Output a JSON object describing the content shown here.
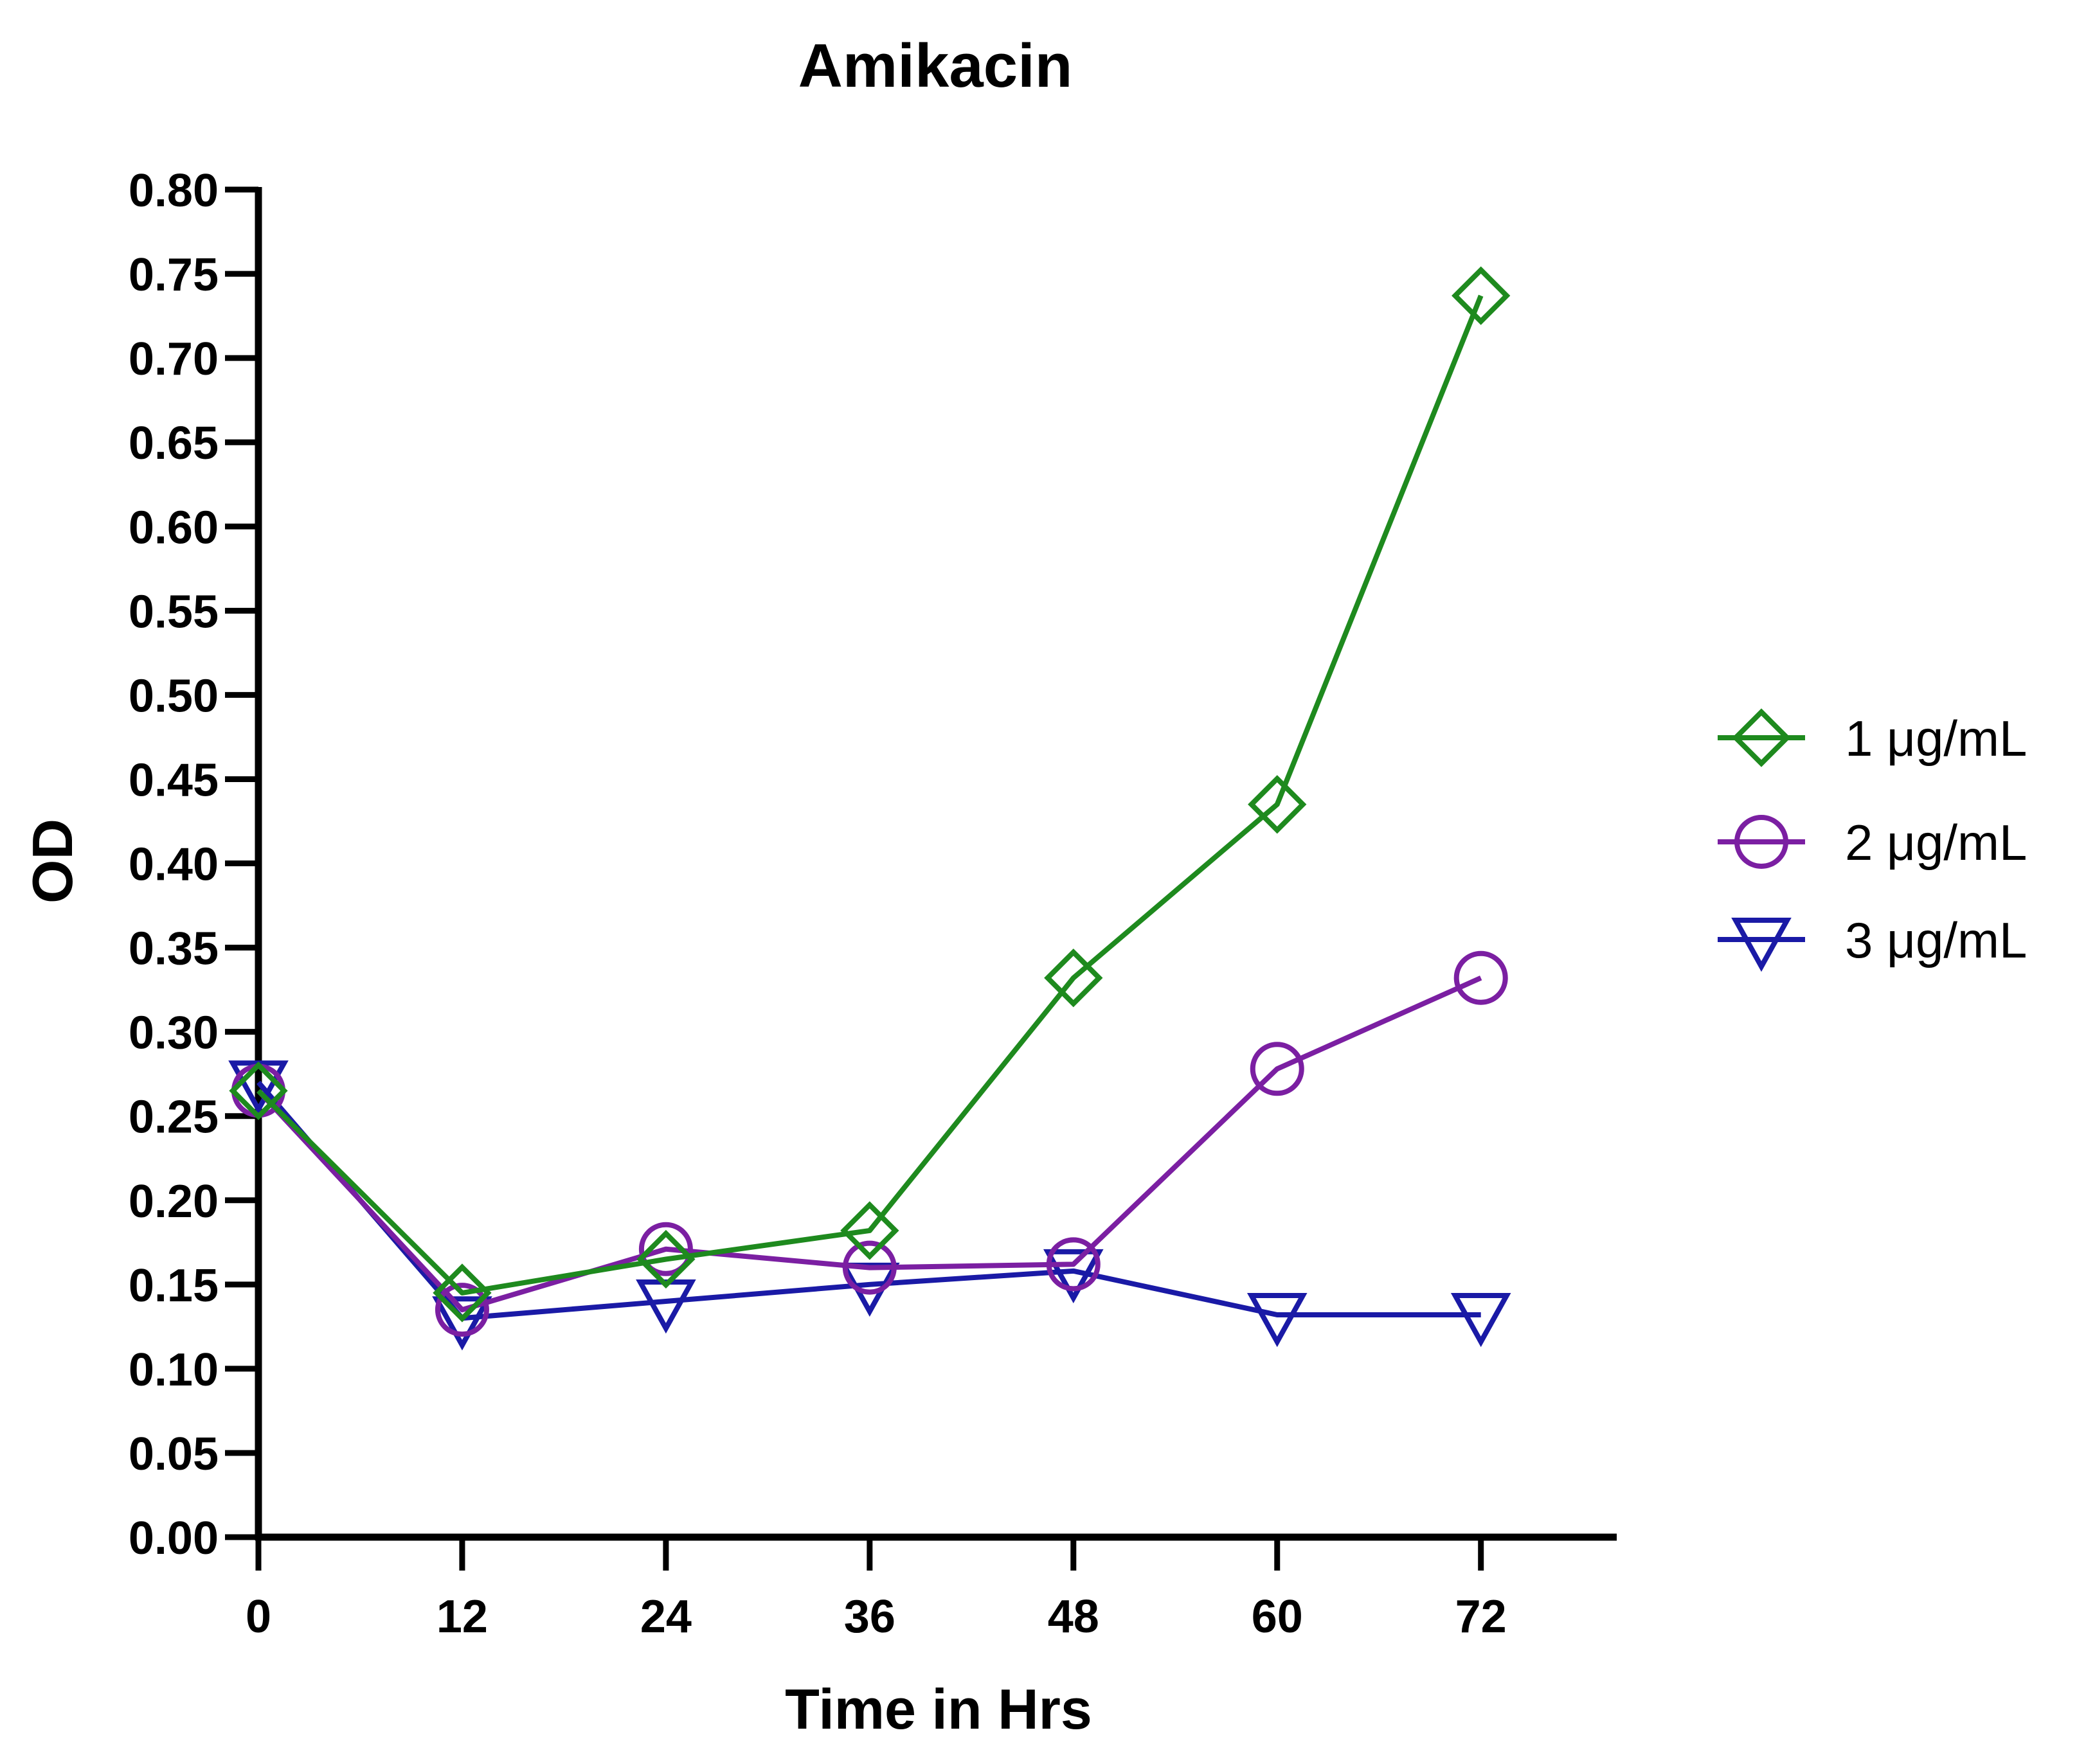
{
  "chart_data": {
    "type": "line",
    "title": "Amikacin",
    "xlabel": "Time in Hrs",
    "ylabel": "OD",
    "x": [
      0,
      12,
      24,
      36,
      48,
      60,
      72
    ],
    "xticks": [
      "0",
      "12",
      "24",
      "36",
      "48",
      "60",
      "72"
    ],
    "xlim": [
      0,
      80
    ],
    "ylim": [
      0,
      0.8
    ],
    "yticks": [
      "0.00",
      "0.05",
      "0.10",
      "0.15",
      "0.20",
      "0.25",
      "0.30",
      "0.35",
      "0.40",
      "0.45",
      "0.50",
      "0.55",
      "0.60",
      "0.65",
      "0.70",
      "0.75",
      "0.80"
    ],
    "grid": false,
    "legend_position": "right",
    "series": [
      {
        "name": "1 μg/mL",
        "color": "#1e8a1e",
        "marker": "diamond",
        "values": [
          0.265,
          0.145,
          0.165,
          0.182,
          0.332,
          0.435,
          0.737
        ]
      },
      {
        "name": "2 μg/mL",
        "color": "#7b1fa2",
        "marker": "circle",
        "values": [
          0.265,
          0.135,
          0.171,
          0.16,
          0.162,
          0.278,
          0.332
        ]
      },
      {
        "name": "3 μg/mL",
        "color": "#1a1aa6",
        "marker": "triangle-down",
        "values": [
          0.27,
          0.13,
          0.14,
          0.15,
          0.158,
          0.132,
          0.132
        ]
      }
    ]
  }
}
